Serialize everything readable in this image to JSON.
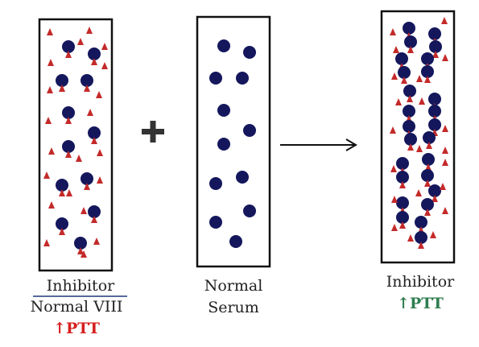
{
  "colors": {
    "tube_border": "#111111",
    "factor": "#14175c",
    "inhibitor": "#c42a2a",
    "text": "#222222",
    "ptt_up_red": "#d61f1f",
    "ptt_up_green": "#2e7d4f",
    "underline": "#1f3a7a"
  },
  "icons": {
    "plus": "plus-sign",
    "arrow": "right-arrow"
  },
  "tube_left": {
    "line1": "Inhibitor",
    "line2": "Normal VIII",
    "line3": "↑PTT"
  },
  "tube_middle": {
    "line1": "Normal",
    "line2": "Serum"
  },
  "tube_right": {
    "line1": "Inhibitor",
    "line2": "↑PTT"
  }
}
